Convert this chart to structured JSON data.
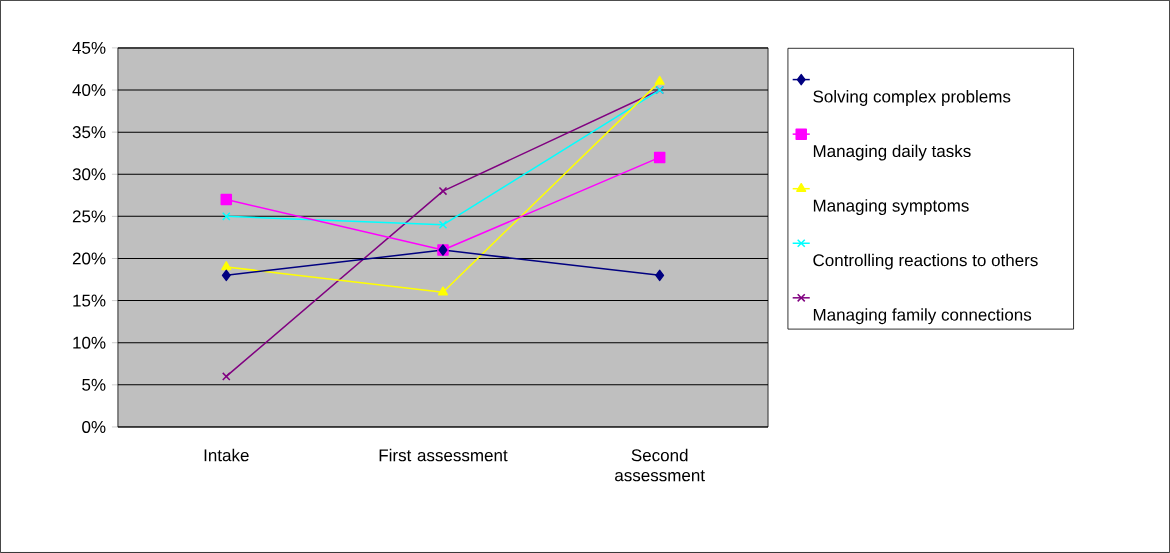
{
  "chart_data": {
    "type": "line",
    "categories": [
      "Intake",
      "First assessment",
      "Second assessment"
    ],
    "series": [
      {
        "name": "Solving complex problems",
        "color": "#000080",
        "marker": "diamond",
        "values": [
          18,
          21,
          18
        ]
      },
      {
        "name": "Managing daily tasks",
        "color": "#ff00ff",
        "marker": "square",
        "values": [
          27,
          21,
          32
        ]
      },
      {
        "name": "Managing symptoms",
        "color": "#ffff00",
        "marker": "triangle",
        "values": [
          19,
          16,
          41
        ]
      },
      {
        "name": "Controlling reactions to others",
        "color": "#00ffff",
        "marker": "cross",
        "values": [
          25,
          24,
          40
        ]
      },
      {
        "name": "Managing family connections",
        "color": "#800080",
        "marker": "cross",
        "values": [
          6,
          28,
          40
        ]
      }
    ],
    "ylim": [
      0,
      45
    ],
    "yticks": [
      {
        "value": 0,
        "label": "0%"
      },
      {
        "value": 5,
        "label": "5%"
      },
      {
        "value": 10,
        "label": "10%"
      },
      {
        "value": 15,
        "label": "15%"
      },
      {
        "value": 20,
        "label": "20%"
      },
      {
        "value": 25,
        "label": "25%"
      },
      {
        "value": 30,
        "label": "30%"
      },
      {
        "value": 35,
        "label": "35%"
      },
      {
        "value": 40,
        "label": "40%"
      },
      {
        "value": 45,
        "label": "45%"
      }
    ],
    "grid": "y",
    "legend": "right"
  }
}
